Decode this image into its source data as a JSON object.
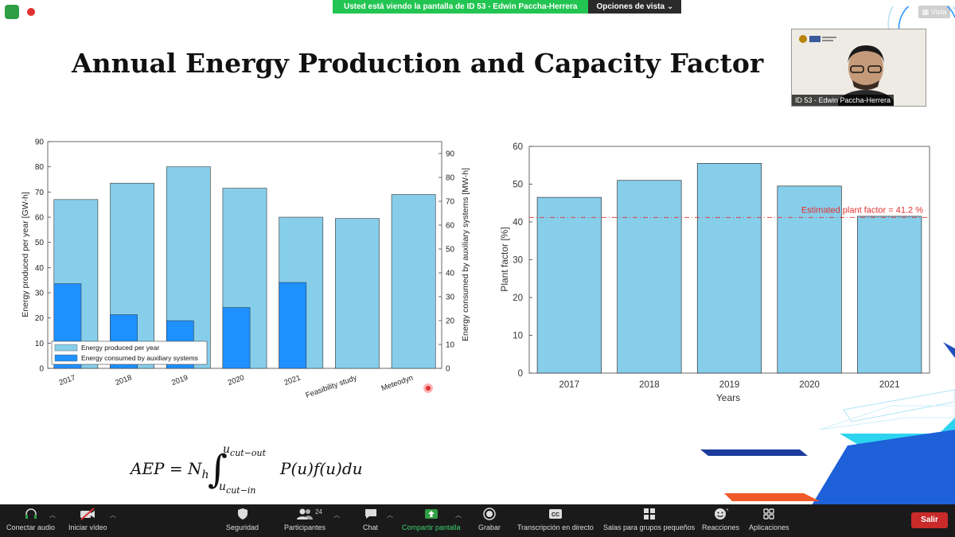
{
  "meeting": {
    "share_banner": "Usted está viendo la pantalla de ID 53 - Edwin Paccha-Herrera",
    "view_options": "Opciones de vista",
    "vista_label": "Vista",
    "participant_label": "ID 53 - Edwin Paccha-Herrera"
  },
  "slide": {
    "title": "Annual Energy Production and Capacity Factor",
    "formula": {
      "lhs": "AEP = N",
      "lhs_sub": "h",
      "upper": "u",
      "upper_sub": "cut−out",
      "lower": "u",
      "lower_sub": "cut−in",
      "integrand": "P(u)f(u)du"
    }
  },
  "chart_data": [
    {
      "type": "bar",
      "categories": [
        "2017",
        "2018",
        "2019",
        "2020",
        "2021",
        "Feasibility study",
        "Meteodyn"
      ],
      "series": [
        {
          "name": "Energy produced per year",
          "axis": "left",
          "color": "#87ceeb",
          "values": [
            67,
            73.5,
            80,
            71.5,
            60,
            59.5,
            69
          ]
        },
        {
          "name": "Energy consumed by auxiliary systems",
          "axis": "right",
          "color": "#1e90ff",
          "values": [
            35.5,
            22.5,
            20,
            25.5,
            36,
            null,
            null
          ]
        }
      ],
      "ylabel": "Energy produced per year [GW-h]",
      "ylabel_right": "Energy consumed by auxiliary systems [MW-h]",
      "ylim": [
        0,
        90
      ],
      "ylim_right": [
        0,
        95
      ],
      "yticks": [
        "0",
        "10",
        "20",
        "30",
        "40",
        "50",
        "60",
        "70",
        "80",
        "90"
      ],
      "yticks_right": [
        "0",
        "10",
        "20",
        "30",
        "40",
        "50",
        "60",
        "70",
        "80",
        "90"
      ],
      "legend": "bottom-left"
    },
    {
      "type": "bar",
      "categories": [
        "2017",
        "2018",
        "2019",
        "2020",
        "2021"
      ],
      "values": [
        46.5,
        51,
        55.5,
        49.5,
        41.5
      ],
      "color": "#87ceeb",
      "xlabel": "Years",
      "ylabel": "Plant factor [%]",
      "ylim": [
        0,
        60
      ],
      "yticks": [
        "0",
        "10",
        "20",
        "30",
        "40",
        "50",
        "60"
      ],
      "reference_line": {
        "value": 41.2,
        "label": "Estimated plant factor = 41.2 %",
        "color": "#e03131"
      }
    }
  ],
  "toolbar": {
    "audio": "Conectar audio",
    "video": "Iniciar vídeo",
    "security": "Seguridad",
    "participants": "Participantes",
    "participants_count": "24",
    "chat": "Chat",
    "share": "Compartir pantalla",
    "record": "Grabar",
    "transcript": "Transcripción en directo",
    "cc_label": "CC",
    "breakout": "Salas para grupos pequeños",
    "reactions": "Reacciones",
    "apps": "Aplicaciones",
    "leave": "Salir"
  }
}
